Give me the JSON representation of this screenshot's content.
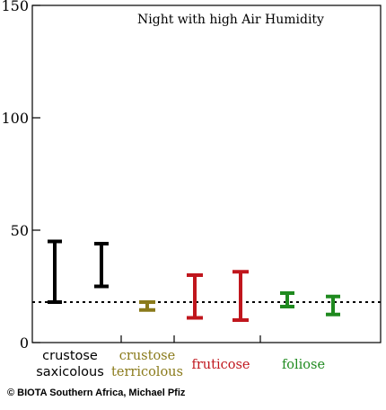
{
  "chart_data": {
    "type": "errorbar",
    "title": "Night with high Air Humidity",
    "ylim": [
      0,
      150
    ],
    "yticks": [
      0,
      50,
      100,
      150
    ],
    "reference_line": 18,
    "groups": [
      {
        "label_lines": [
          "crustose",
          "saxicolous"
        ],
        "color": "#000000",
        "bars": [
          {
            "low": 18,
            "high": 45
          },
          {
            "low": 25,
            "high": 44
          }
        ]
      },
      {
        "label_lines": [
          "crustose",
          "terricolous"
        ],
        "color": "#8a7a1a",
        "bars": [
          {
            "low": 14.5,
            "high": 18
          }
        ]
      },
      {
        "label_lines": [
          "fruticose"
        ],
        "color": "#c0161d",
        "bars": [
          {
            "low": 11,
            "high": 30
          },
          {
            "low": 10,
            "high": 31.5
          }
        ]
      },
      {
        "label_lines": [
          "foliose"
        ],
        "color": "#1f8a1f",
        "bars": [
          {
            "low": 16,
            "high": 22
          },
          {
            "low": 12.5,
            "high": 20.5
          }
        ]
      }
    ]
  },
  "credit": "© BIOTA Southern Africa, Michael Pfiz"
}
